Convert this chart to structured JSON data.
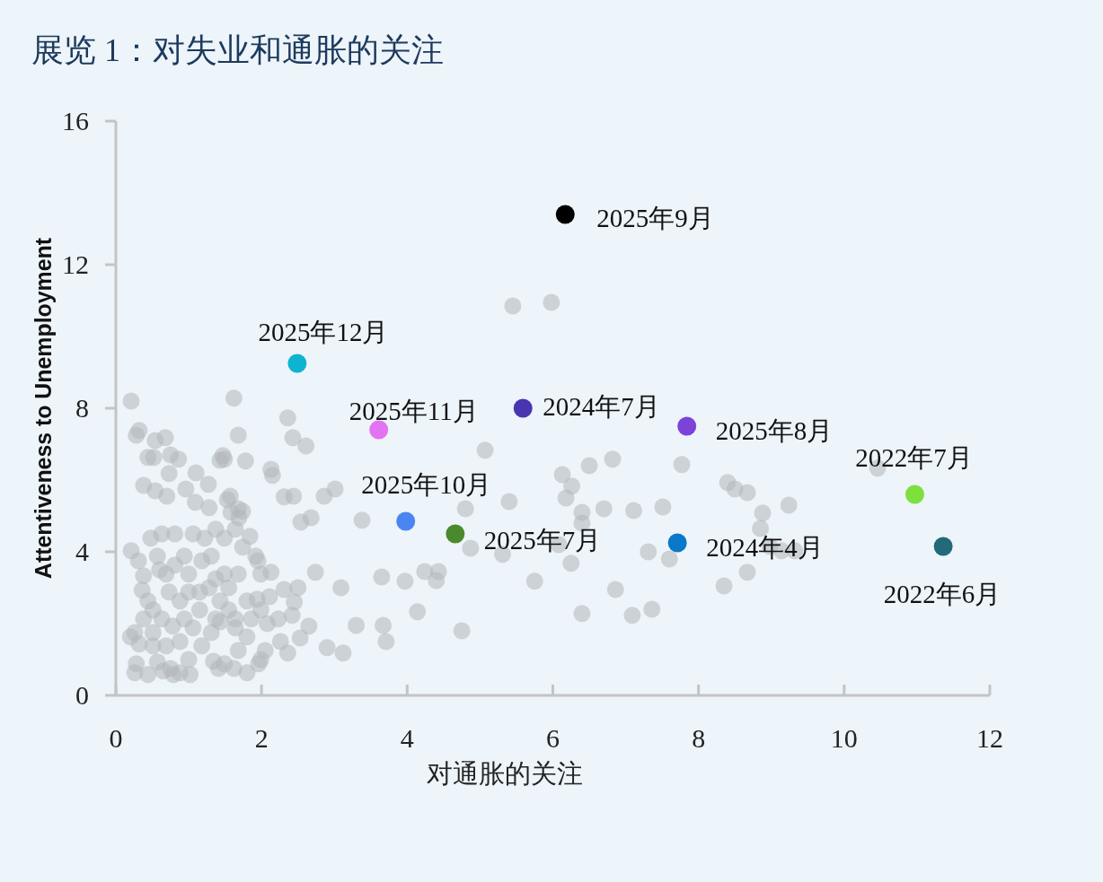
{
  "chart_data": {
    "type": "scatter",
    "title": "展览 1：对失业和通胀的关注",
    "xlabel": "对通胀的关注",
    "ylabel": "Attentiveness to Unemployment",
    "xlim": [
      0,
      12
    ],
    "xticks": [
      0,
      2,
      4,
      6,
      8,
      10,
      12
    ],
    "ylim": [
      0,
      16
    ],
    "yticks": [
      0,
      4,
      8,
      12,
      16
    ],
    "grid": false,
    "marker": "circle",
    "series": [
      {
        "color": "#b3b6b9",
        "x": [
          5.45,
          5.98,
          5.07,
          5.4,
          6.13,
          6.18,
          6.26,
          6.4,
          6.4,
          6.5,
          6.7,
          6.82,
          7.11,
          7.51,
          7.77,
          7.31,
          7.6,
          8.4,
          8.5,
          8.67,
          8.88,
          8.85,
          9.24,
          9.14,
          8.98,
          8.67,
          8.35,
          6.86,
          6.4,
          7.09,
          7.36,
          5.75,
          6.25,
          5.31,
          4.87,
          4.8,
          4.75,
          4.43,
          4.24,
          4.4,
          4.14,
          3.97,
          3.65,
          3.67,
          3.71,
          3.3,
          3.12,
          3.09,
          2.9,
          2.74,
          2.65,
          2.54,
          2.5,
          2.45,
          2.42,
          2.31,
          2.53,
          2.44,
          2.61,
          2.68,
          2.36,
          2.43,
          2.13,
          2.15,
          2.31,
          2.86,
          3.01,
          3.38,
          10.46,
          9.32,
          6.08
        ],
        "values": [
          10.85,
          10.95,
          6.83,
          5.4,
          6.15,
          5.5,
          5.83,
          5.1,
          4.8,
          6.4,
          5.2,
          6.58,
          5.15,
          5.25,
          6.43,
          4.0,
          3.8,
          5.93,
          5.75,
          5.65,
          5.08,
          4.65,
          5.3,
          4.03,
          4.15,
          3.43,
          3.05,
          2.95,
          2.28,
          2.23,
          2.4,
          3.18,
          3.68,
          3.93,
          4.1,
          5.2,
          1.8,
          3.45,
          3.45,
          3.2,
          2.33,
          3.18,
          3.3,
          1.95,
          1.5,
          1.95,
          1.18,
          3.0,
          1.33,
          3.43,
          1.93,
          4.83,
          3.0,
          2.6,
          2.23,
          2.95,
          1.6,
          5.55,
          6.95,
          4.95,
          7.73,
          7.18,
          6.3,
          6.13,
          5.53,
          5.55,
          5.75,
          4.88,
          6.33,
          4.03,
          4.2
        ]
      },
      {
        "color": "#b3b6b9",
        "x": [
          0.21,
          0.28,
          0.32,
          0.44,
          0.52,
          0.68,
          0.54,
          0.38,
          0.54,
          0.7,
          0.75,
          0.86,
          0.73,
          0.96,
          1.1,
          1.27,
          1.09,
          1.28,
          1.43,
          1.47,
          1.49,
          1.53,
          1.62,
          1.68,
          1.78,
          1.57,
          1.58,
          1.68,
          1.69,
          1.74,
          1.74,
          0.21,
          0.31,
          0.38,
          0.36,
          0.44,
          0.51,
          0.6,
          0.69,
          0.81,
          0.94,
          1.0,
          1.18,
          1.31,
          1.37,
          1.49,
          1.55,
          1.68,
          1.8,
          1.92,
          1.99,
          2.13,
          0.26,
          0.32,
          0.28,
          0.44,
          0.57,
          0.69,
          0.75,
          0.79,
          0.88,
          1.0,
          1.06,
          1.18,
          1.31,
          1.43,
          1.49,
          1.62,
          1.68,
          1.8,
          1.86,
          1.99,
          2.05,
          2.08,
          2.23,
          2.26,
          2.36,
          2.11,
          1.94,
          1.64,
          1.37,
          1.15,
          0.94,
          0.78,
          0.63,
          0.51,
          0.38,
          0.51,
          0.2,
          0.26,
          1.34,
          1.41,
          1.02,
          0.65,
          0.88,
          1.64,
          1.8,
          1.96,
          1.99,
          1.15,
          1.28,
          1.0,
          1.43,
          1.55,
          0.88,
          0.73,
          0.57,
          0.48,
          0.63,
          0.81,
          1.06,
          1.22,
          1.49,
          1.64,
          1.84,
          1.95,
          1.37
        ],
        "values": [
          8.2,
          7.25,
          7.38,
          6.63,
          6.63,
          7.18,
          7.1,
          5.85,
          5.7,
          5.55,
          6.7,
          6.58,
          6.18,
          5.75,
          6.2,
          5.88,
          5.38,
          5.23,
          6.55,
          6.68,
          6.58,
          5.45,
          8.28,
          7.25,
          6.53,
          5.55,
          5.1,
          5.2,
          4.95,
          5.13,
          4.13,
          4.03,
          3.75,
          3.33,
          2.93,
          2.63,
          2.38,
          3.5,
          3.38,
          3.63,
          3.88,
          3.38,
          3.75,
          3.88,
          3.25,
          3.38,
          3.0,
          3.38,
          2.63,
          3.88,
          3.38,
          3.43,
          1.75,
          1.43,
          0.88,
          0.58,
          0.93,
          1.38,
          0.75,
          0.58,
          1.5,
          1.0,
          1.88,
          1.38,
          1.75,
          2.05,
          0.88,
          0.75,
          1.25,
          1.63,
          2.13,
          1.0,
          1.25,
          2.0,
          2.13,
          1.5,
          1.18,
          2.75,
          2.68,
          2.13,
          2.13,
          2.38,
          2.13,
          1.93,
          2.13,
          1.38,
          2.13,
          1.75,
          1.63,
          0.63,
          0.95,
          0.75,
          0.58,
          0.68,
          0.63,
          1.88,
          0.63,
          0.88,
          2.38,
          2.88,
          3.0,
          2.88,
          2.63,
          2.38,
          2.63,
          2.88,
          3.88,
          4.38,
          4.5,
          4.5,
          4.5,
          4.38,
          4.38,
          4.63,
          4.43,
          3.75,
          4.63
        ]
      },
      {
        "name": "2025年9月",
        "color": "#000000",
        "x": [
          6.17
        ],
        "values": [
          13.4
        ]
      },
      {
        "name": "2025年12月",
        "color": "#0db4d2",
        "x": [
          2.49
        ],
        "values": [
          9.25
        ]
      },
      {
        "name": "2025年11月",
        "color": "#e373f0",
        "x": [
          3.61
        ],
        "values": [
          7.4
        ]
      },
      {
        "name": "2024年7月",
        "color": "#4836b0",
        "x": [
          5.59
        ],
        "values": [
          8.0
        ]
      },
      {
        "name": "2025年8月",
        "color": "#7b43d9",
        "x": [
          7.84
        ],
        "values": [
          7.5
        ]
      },
      {
        "name": "2022年7月",
        "color": "#7ee03c",
        "x": [
          10.97
        ],
        "values": [
          5.6
        ]
      },
      {
        "name": "2022年6月",
        "color": "#226a78",
        "x": [
          11.36
        ],
        "values": [
          4.15
        ]
      },
      {
        "name": "2025年10月",
        "color": "#4a86f2",
        "x": [
          3.98
        ],
        "values": [
          4.85
        ]
      },
      {
        "name": "2025年7月",
        "color": "#4b8a2c",
        "x": [
          4.66
        ],
        "values": [
          4.5
        ]
      },
      {
        "name": "2024年4月",
        "color": "#0a78c8",
        "x": [
          7.71
        ],
        "values": [
          4.25
        ]
      }
    ]
  }
}
